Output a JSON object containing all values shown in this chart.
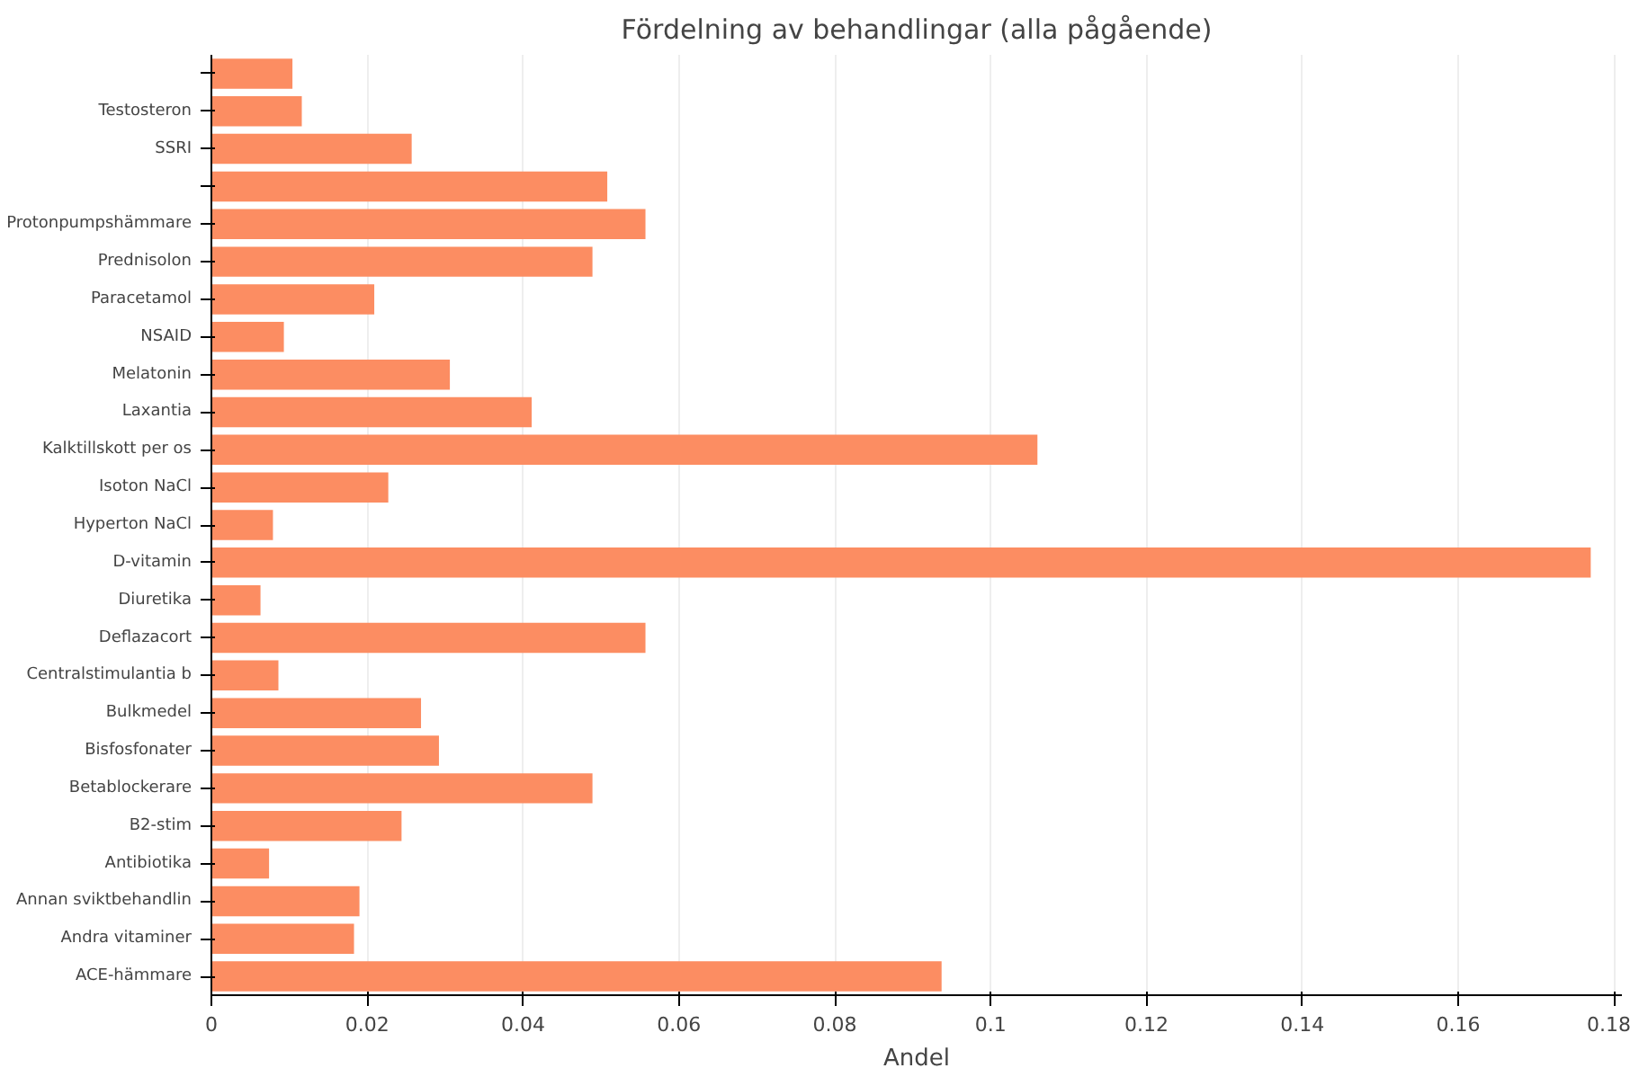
{
  "chart_data": {
    "type": "bar",
    "orientation": "horizontal",
    "title": "Fördelning av behandlingar (alla pågående)",
    "xlabel": "Andel",
    "categories": [
      null,
      "Testosteron",
      "SSRI",
      null,
      "Protonpumpshämmare",
      "Prednisolon",
      "Paracetamol",
      "NSAID",
      "Melatonin",
      "Laxantia",
      "Kalktillskott per os",
      "Isoton NaCl",
      "Hyperton NaCl",
      "D-vitamin",
      "Diuretika",
      "Deflazacort",
      "Centralstimulantia b",
      "Bulkmedel",
      "Bisfosfonater",
      "Betablockerare",
      "B2-stim",
      "Antibiotika",
      "Annan sviktbehandlin",
      "Andra vitaminer",
      "ACE-hämmare"
    ],
    "values": [
      0.0104,
      0.0116,
      0.0257,
      0.0508,
      0.0557,
      0.0489,
      0.0209,
      0.0093,
      0.0306,
      0.0411,
      0.106,
      0.0227,
      0.0079,
      0.177,
      0.0063,
      0.0557,
      0.0086,
      0.0269,
      0.0292,
      0.0489,
      0.0244,
      0.0074,
      0.019,
      0.0183,
      0.0937
    ],
    "color": "#fc8d62",
    "xlim": [
      0,
      0.181
    ],
    "xticks": [
      0,
      0.02,
      0.04,
      0.06,
      0.08,
      0.1,
      0.12,
      0.14,
      0.16,
      0.18
    ],
    "grid": "x"
  }
}
